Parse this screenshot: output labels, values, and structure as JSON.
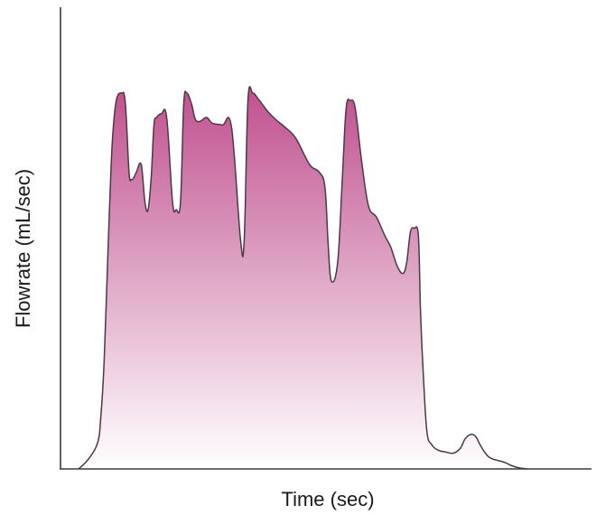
{
  "chart_data": {
    "type": "area",
    "title": "",
    "xlabel": "Time (sec)",
    "ylabel": "Flowrate (mL/sec)",
    "xlim": [
      0,
      100
    ],
    "ylim": [
      0,
      100
    ],
    "grid": false,
    "fill_color_top": "#c0508e",
    "fill_color_bottom": "#ffffff",
    "line_color": "#4a3a44",
    "series": [
      {
        "x": [
          3.4,
          5.2,
          7.0,
          7.6,
          8.2,
          8.8,
          9.3,
          9.8,
          10.5,
          11.5,
          12.2,
          12.9,
          13.3,
          13.8,
          14.3,
          15.2,
          15.9,
          16.5,
          17.1,
          17.6,
          18.1,
          19.0,
          20.0,
          21.1,
          21.8,
          22.6,
          23.2,
          23.8,
          24.7,
          25.4,
          26.3,
          27.5,
          28.6,
          30.5,
          32.2,
          33.9,
          34.6,
          35.3,
          36.2,
          37.2,
          38.0,
          39.1,
          40.5,
          42.2,
          44.3,
          46.9,
          48.7,
          49.8,
          50.4,
          51.0,
          52.2,
          53.1,
          53.8,
          54.6,
          55.5,
          56.7,
          58.0,
          59.5,
          61.1,
          62.2,
          63.4,
          64.5,
          65.2,
          65.9,
          66.6,
          67.4,
          67.8,
          68.3,
          69.0,
          69.9,
          71.1,
          72.5,
          74.0,
          75.3,
          76.2,
          77.3,
          78.2,
          79.0,
          80.0,
          81.1,
          83.5,
          84.9,
          86.3,
          87.8
        ],
        "y": [
          0.0,
          2.5,
          7.0,
          14.0,
          28.0,
          52.0,
          72.0,
          88.0,
          98.0,
          100.0,
          97.5,
          79.0,
          77.0,
          77.5,
          79.0,
          81.0,
          71.0,
          69.0,
          78.0,
          91.5,
          93.5,
          94.5,
          93.5,
          71.0,
          69.0,
          71.0,
          97.0,
          100.0,
          97.0,
          93.0,
          92.5,
          93.5,
          92.0,
          91.5,
          91.0,
          61.0,
          61.0,
          98.0,
          100.0,
          98.5,
          97.0,
          95.0,
          93.0,
          91.0,
          88.0,
          81.0,
          79.0,
          75.0,
          60.0,
          50.0,
          55.0,
          78.0,
          96.0,
          98.0,
          96.0,
          82.0,
          70.0,
          67.0,
          62.0,
          59.0,
          54.0,
          52.0,
          55.0,
          63.0,
          64.0,
          62.0,
          42.0,
          26.0,
          10.0,
          6.5,
          5.0,
          4.5,
          4.2,
          5.5,
          8.0,
          9.2,
          8.6,
          6.5,
          4.2,
          2.8,
          1.8,
          0.9,
          0.3,
          0.0
        ]
      }
    ]
  }
}
